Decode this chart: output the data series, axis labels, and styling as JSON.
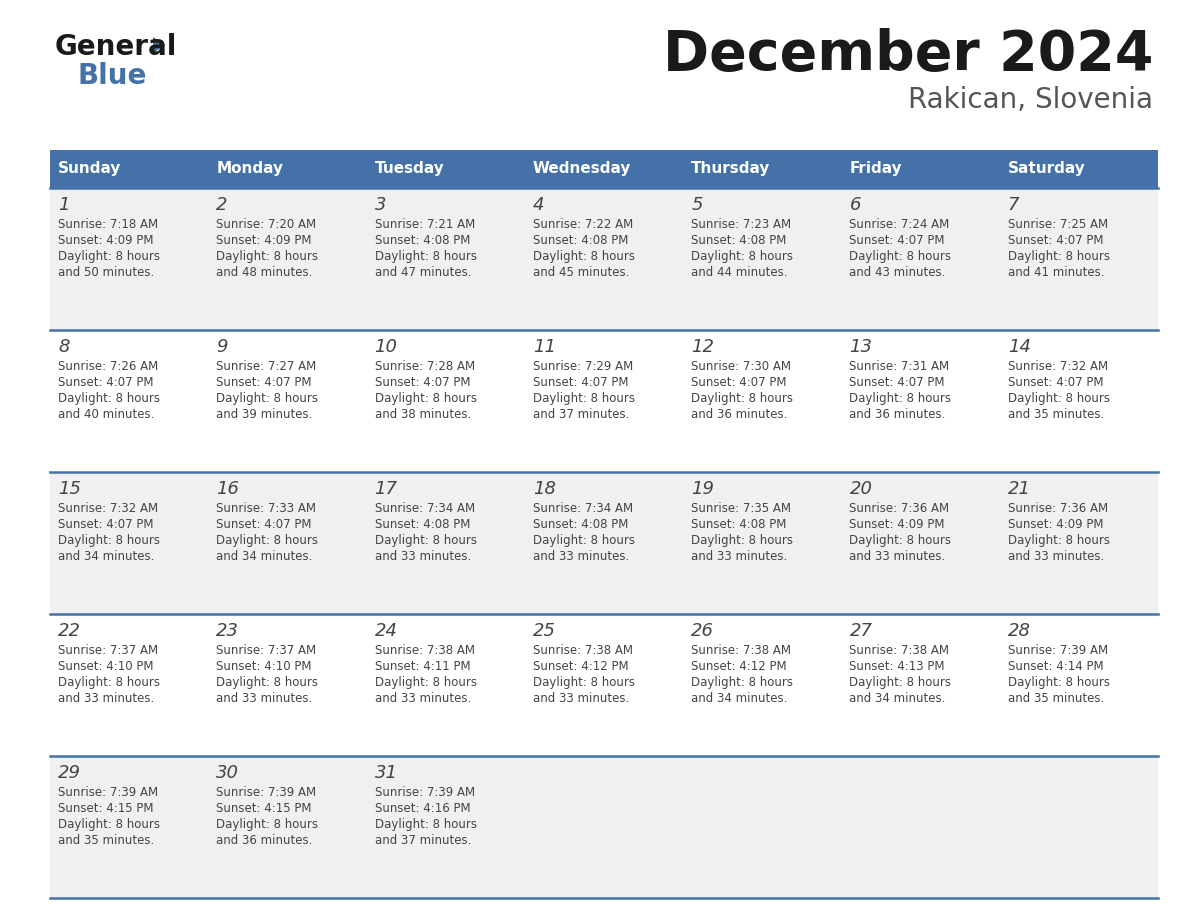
{
  "title": "December 2024",
  "subtitle": "Rakican, Slovenia",
  "days_of_week": [
    "Sunday",
    "Monday",
    "Tuesday",
    "Wednesday",
    "Thursday",
    "Friday",
    "Saturday"
  ],
  "header_bg": "#4472a8",
  "header_text": "#ffffff",
  "row_bg_odd": "#f0f0f0",
  "row_bg_even": "#ffffff",
  "border_color": "#4472a8",
  "calendar_data": [
    {
      "day": 1,
      "col": 0,
      "row": 0,
      "sunrise": "7:18 AM",
      "sunset": "4:09 PM",
      "daylight": "8 hours",
      "daylight2": "and 50 minutes."
    },
    {
      "day": 2,
      "col": 1,
      "row": 0,
      "sunrise": "7:20 AM",
      "sunset": "4:09 PM",
      "daylight": "8 hours",
      "daylight2": "and 48 minutes."
    },
    {
      "day": 3,
      "col": 2,
      "row": 0,
      "sunrise": "7:21 AM",
      "sunset": "4:08 PM",
      "daylight": "8 hours",
      "daylight2": "and 47 minutes."
    },
    {
      "day": 4,
      "col": 3,
      "row": 0,
      "sunrise": "7:22 AM",
      "sunset": "4:08 PM",
      "daylight": "8 hours",
      "daylight2": "and 45 minutes."
    },
    {
      "day": 5,
      "col": 4,
      "row": 0,
      "sunrise": "7:23 AM",
      "sunset": "4:08 PM",
      "daylight": "8 hours",
      "daylight2": "and 44 minutes."
    },
    {
      "day": 6,
      "col": 5,
      "row": 0,
      "sunrise": "7:24 AM",
      "sunset": "4:07 PM",
      "daylight": "8 hours",
      "daylight2": "and 43 minutes."
    },
    {
      "day": 7,
      "col": 6,
      "row": 0,
      "sunrise": "7:25 AM",
      "sunset": "4:07 PM",
      "daylight": "8 hours",
      "daylight2": "and 41 minutes."
    },
    {
      "day": 8,
      "col": 0,
      "row": 1,
      "sunrise": "7:26 AM",
      "sunset": "4:07 PM",
      "daylight": "8 hours",
      "daylight2": "and 40 minutes."
    },
    {
      "day": 9,
      "col": 1,
      "row": 1,
      "sunrise": "7:27 AM",
      "sunset": "4:07 PM",
      "daylight": "8 hours",
      "daylight2": "and 39 minutes."
    },
    {
      "day": 10,
      "col": 2,
      "row": 1,
      "sunrise": "7:28 AM",
      "sunset": "4:07 PM",
      "daylight": "8 hours",
      "daylight2": "and 38 minutes."
    },
    {
      "day": 11,
      "col": 3,
      "row": 1,
      "sunrise": "7:29 AM",
      "sunset": "4:07 PM",
      "daylight": "8 hours",
      "daylight2": "and 37 minutes."
    },
    {
      "day": 12,
      "col": 4,
      "row": 1,
      "sunrise": "7:30 AM",
      "sunset": "4:07 PM",
      "daylight": "8 hours",
      "daylight2": "and 36 minutes."
    },
    {
      "day": 13,
      "col": 5,
      "row": 1,
      "sunrise": "7:31 AM",
      "sunset": "4:07 PM",
      "daylight": "8 hours",
      "daylight2": "and 36 minutes."
    },
    {
      "day": 14,
      "col": 6,
      "row": 1,
      "sunrise": "7:32 AM",
      "sunset": "4:07 PM",
      "daylight": "8 hours",
      "daylight2": "and 35 minutes."
    },
    {
      "day": 15,
      "col": 0,
      "row": 2,
      "sunrise": "7:32 AM",
      "sunset": "4:07 PM",
      "daylight": "8 hours",
      "daylight2": "and 34 minutes."
    },
    {
      "day": 16,
      "col": 1,
      "row": 2,
      "sunrise": "7:33 AM",
      "sunset": "4:07 PM",
      "daylight": "8 hours",
      "daylight2": "and 34 minutes."
    },
    {
      "day": 17,
      "col": 2,
      "row": 2,
      "sunrise": "7:34 AM",
      "sunset": "4:08 PM",
      "daylight": "8 hours",
      "daylight2": "and 33 minutes."
    },
    {
      "day": 18,
      "col": 3,
      "row": 2,
      "sunrise": "7:34 AM",
      "sunset": "4:08 PM",
      "daylight": "8 hours",
      "daylight2": "and 33 minutes."
    },
    {
      "day": 19,
      "col": 4,
      "row": 2,
      "sunrise": "7:35 AM",
      "sunset": "4:08 PM",
      "daylight": "8 hours",
      "daylight2": "and 33 minutes."
    },
    {
      "day": 20,
      "col": 5,
      "row": 2,
      "sunrise": "7:36 AM",
      "sunset": "4:09 PM",
      "daylight": "8 hours",
      "daylight2": "and 33 minutes."
    },
    {
      "day": 21,
      "col": 6,
      "row": 2,
      "sunrise": "7:36 AM",
      "sunset": "4:09 PM",
      "daylight": "8 hours",
      "daylight2": "and 33 minutes."
    },
    {
      "day": 22,
      "col": 0,
      "row": 3,
      "sunrise": "7:37 AM",
      "sunset": "4:10 PM",
      "daylight": "8 hours",
      "daylight2": "and 33 minutes."
    },
    {
      "day": 23,
      "col": 1,
      "row": 3,
      "sunrise": "7:37 AM",
      "sunset": "4:10 PM",
      "daylight": "8 hours",
      "daylight2": "and 33 minutes."
    },
    {
      "day": 24,
      "col": 2,
      "row": 3,
      "sunrise": "7:38 AM",
      "sunset": "4:11 PM",
      "daylight": "8 hours",
      "daylight2": "and 33 minutes."
    },
    {
      "day": 25,
      "col": 3,
      "row": 3,
      "sunrise": "7:38 AM",
      "sunset": "4:12 PM",
      "daylight": "8 hours",
      "daylight2": "and 33 minutes."
    },
    {
      "day": 26,
      "col": 4,
      "row": 3,
      "sunrise": "7:38 AM",
      "sunset": "4:12 PM",
      "daylight": "8 hours",
      "daylight2": "and 34 minutes."
    },
    {
      "day": 27,
      "col": 5,
      "row": 3,
      "sunrise": "7:38 AM",
      "sunset": "4:13 PM",
      "daylight": "8 hours",
      "daylight2": "and 34 minutes."
    },
    {
      "day": 28,
      "col": 6,
      "row": 3,
      "sunrise": "7:39 AM",
      "sunset": "4:14 PM",
      "daylight": "8 hours",
      "daylight2": "and 35 minutes."
    },
    {
      "day": 29,
      "col": 0,
      "row": 4,
      "sunrise": "7:39 AM",
      "sunset": "4:15 PM",
      "daylight": "8 hours",
      "daylight2": "and 35 minutes."
    },
    {
      "day": 30,
      "col": 1,
      "row": 4,
      "sunrise": "7:39 AM",
      "sunset": "4:15 PM",
      "daylight": "8 hours",
      "daylight2": "and 36 minutes."
    },
    {
      "day": 31,
      "col": 2,
      "row": 4,
      "sunrise": "7:39 AM",
      "sunset": "4:16 PM",
      "daylight": "8 hours",
      "daylight2": "and 37 minutes."
    }
  ],
  "logo_general_color": "#1a1a1a",
  "logo_blue_color": "#4472a8",
  "logo_triangle_color": "#4472a8",
  "title_color": "#1a1a1a",
  "subtitle_color": "#555555"
}
